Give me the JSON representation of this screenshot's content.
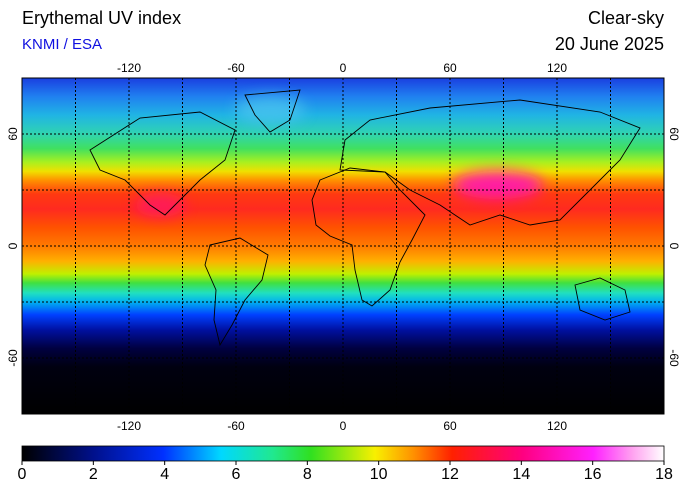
{
  "header": {
    "title": "Erythemal UV index",
    "source": "KNMI / ESA",
    "condition": "Clear-sky",
    "date": "20 June 2025"
  },
  "map": {
    "lonlim": [
      -180,
      180
    ],
    "latlim": [
      90,
      -90
    ],
    "lon_ticks": [
      -120,
      -60,
      0,
      60,
      120
    ],
    "lat_ticks": [
      60,
      0,
      -60
    ]
  },
  "colorbar": {
    "range": [
      0,
      18
    ],
    "ticks": [
      0,
      2,
      4,
      6,
      8,
      10,
      12,
      14,
      16,
      18
    ]
  }
}
